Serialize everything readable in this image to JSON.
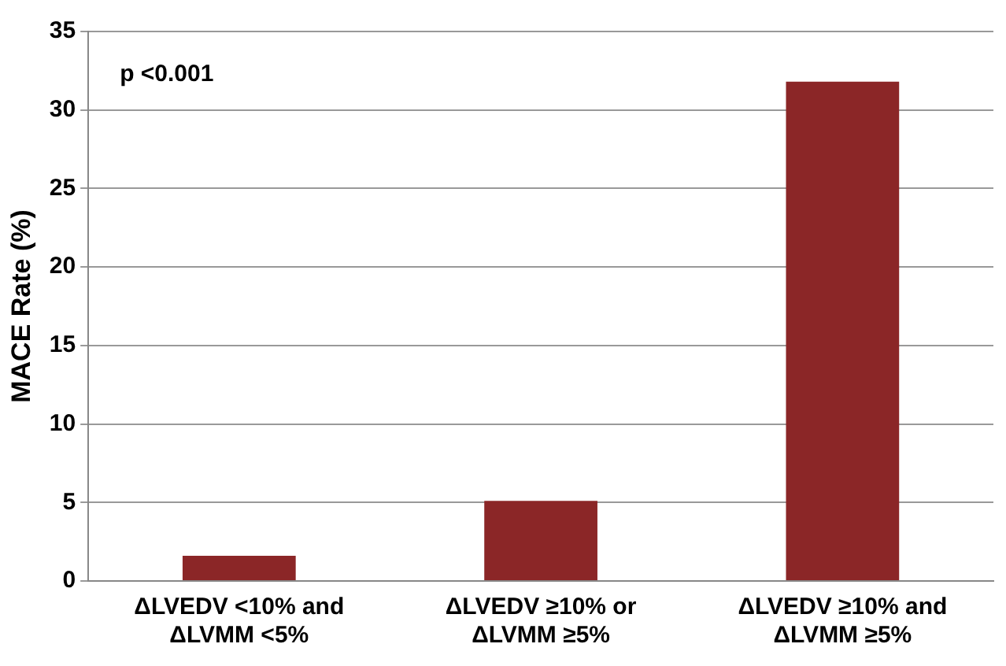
{
  "chart_data": {
    "type": "bar",
    "ylabel": "MACE Rate (%)",
    "categories": [
      "ΔLVEDV <10% and\nΔLVMM <5%",
      "ΔLVEDV ≥10% or\nΔLVMM ≥5%",
      "ΔLVEDV ≥10% and\nΔLVMM ≥5%"
    ],
    "values": [
      1.6,
      5.1,
      31.8
    ],
    "color": "#8b2627",
    "ylim": [
      0,
      35
    ],
    "yticks": [
      0,
      5,
      10,
      15,
      20,
      25,
      30,
      35
    ],
    "grid": "y",
    "annotations": [
      "p <0.001"
    ]
  }
}
